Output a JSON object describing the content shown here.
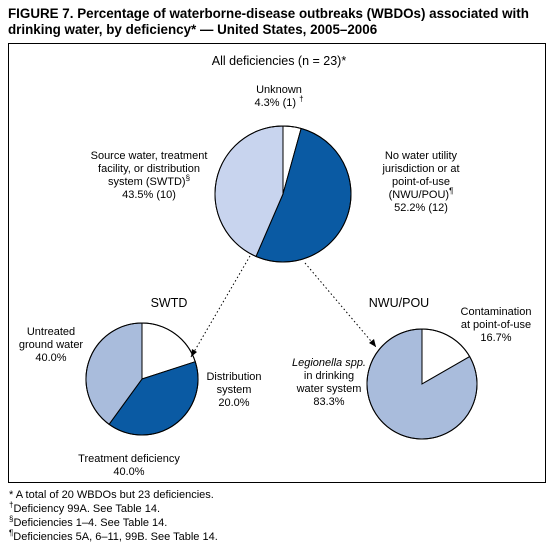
{
  "figure": {
    "title": "FIGURE 7. Percentage of waterborne-disease outbreaks (WBDOs) associated with drinking water, by deficiency* — United States, 2005–2006"
  },
  "colors": {
    "dark_blue": "#0a5aa3",
    "light_blue": "#a9bcdc",
    "lighter_blue": "#c8d4ee",
    "white": "#ffffff"
  },
  "chart_data": [
    {
      "type": "pie",
      "title": "All deficiencies (n = 23)*",
      "slices": [
        {
          "label_lines": [
            "Unknown"
          ],
          "value_text": "4.3% (1)",
          "marker": "†",
          "value": 4.3,
          "count": 1,
          "color": "#ffffff"
        },
        {
          "label_lines": [
            "No water utility",
            "jurisdiction or at",
            "point-of-use",
            "(NWU/POU)"
          ],
          "value_text": "52.2% (12)",
          "marker": "¶",
          "value": 52.2,
          "count": 12,
          "color": "#0a5aa3"
        },
        {
          "label_lines": [
            "Source water, treatment",
            "facility, or distribution",
            "system (SWTD)"
          ],
          "value_text": "43.5% (10)",
          "marker": "§",
          "value": 43.5,
          "count": 10,
          "color": "#c8d4ee"
        }
      ]
    },
    {
      "type": "pie",
      "title": "SWTD",
      "slices": [
        {
          "label_lines": [
            "Distribution",
            "system"
          ],
          "value_text": "20.0%",
          "value": 20.0,
          "color": "#ffffff"
        },
        {
          "label_lines": [
            "Treatment deficiency"
          ],
          "value_text": "40.0%",
          "value": 40.0,
          "color": "#0a5aa3"
        },
        {
          "label_lines": [
            "Untreated",
            "ground water"
          ],
          "value_text": "40.0%",
          "value": 40.0,
          "color": "#a9bcdc"
        }
      ]
    },
    {
      "type": "pie",
      "title": "NWU/POU",
      "slices": [
        {
          "label_lines": [
            "Contamination",
            "at point-of-use"
          ],
          "value_text": "16.7%",
          "value": 16.7,
          "color": "#ffffff"
        },
        {
          "label_lines": [
            "Legionella spp.",
            "in drinking",
            "water system"
          ],
          "value_text": "83.3%",
          "value": 83.3,
          "color": "#a9bcdc"
        }
      ]
    }
  ],
  "footnotes": [
    {
      "marker": "*",
      "text": "A total of 20 WBDOs but 23 deficiencies."
    },
    {
      "marker": "†",
      "text": "Deficiency 99A. See Table 14."
    },
    {
      "marker": "§",
      "text": "Deficiencies 1–4. See Table 14."
    },
    {
      "marker": "¶",
      "text": "Deficiencies 5A, 6–11, 99B. See Table 14."
    }
  ]
}
